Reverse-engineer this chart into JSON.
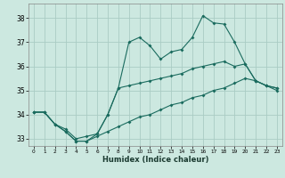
{
  "xlabel": "Humidex (Indice chaleur)",
  "xlim": [
    -0.5,
    23.5
  ],
  "ylim": [
    32.7,
    38.6
  ],
  "yticks": [
    33,
    34,
    35,
    36,
    37,
    38
  ],
  "xticks": [
    0,
    1,
    2,
    3,
    4,
    5,
    6,
    7,
    8,
    9,
    10,
    11,
    12,
    13,
    14,
    15,
    16,
    17,
    18,
    19,
    20,
    21,
    22,
    23
  ],
  "bg_color": "#cce8e0",
  "grid_color": "#aaccC4",
  "line_color": "#1a6b5e",
  "series": [
    {
      "x": [
        0,
        1,
        2,
        3,
        4,
        5,
        6,
        7,
        8,
        9,
        10,
        11,
        12,
        13,
        14,
        15,
        16,
        17,
        18,
        19,
        20,
        21,
        22,
        23
      ],
      "y": [
        34.1,
        34.1,
        33.6,
        33.3,
        32.9,
        32.9,
        33.2,
        34.0,
        35.1,
        37.0,
        37.2,
        36.85,
        36.3,
        36.6,
        36.7,
        37.2,
        38.1,
        37.8,
        37.75,
        37.0,
        36.1,
        35.4,
        35.2,
        35.1
      ]
    },
    {
      "x": [
        0,
        1,
        2,
        3,
        4,
        5,
        6,
        7,
        8,
        9,
        10,
        11,
        12,
        13,
        14,
        15,
        16,
        17,
        18,
        19,
        20,
        21,
        22,
        23
      ],
      "y": [
        34.1,
        34.1,
        33.6,
        33.4,
        33.0,
        33.1,
        33.2,
        34.0,
        35.1,
        35.2,
        35.3,
        35.4,
        35.5,
        35.6,
        35.7,
        35.9,
        36.0,
        36.1,
        36.2,
        36.0,
        36.1,
        35.4,
        35.2,
        35.1
      ]
    },
    {
      "x": [
        0,
        1,
        2,
        3,
        4,
        5,
        6,
        7,
        8,
        9,
        10,
        11,
        12,
        13,
        14,
        15,
        16,
        17,
        18,
        19,
        20,
        21,
        22,
        23
      ],
      "y": [
        34.1,
        34.1,
        33.6,
        33.3,
        32.9,
        32.9,
        33.1,
        33.3,
        33.5,
        33.7,
        33.9,
        34.0,
        34.2,
        34.4,
        34.5,
        34.7,
        34.8,
        35.0,
        35.1,
        35.3,
        35.5,
        35.4,
        35.2,
        35.0
      ]
    }
  ]
}
